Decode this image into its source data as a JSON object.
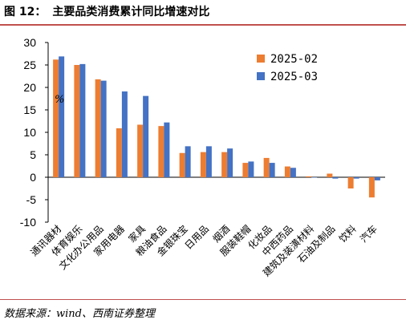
{
  "header": {
    "figure_label": "图 12：",
    "title": "主要品类消费累计同比增速对比"
  },
  "footer": {
    "source": "数据来源：wind、西南证券整理"
  },
  "chart_data": {
    "type": "bar",
    "unit_label": "%",
    "ylim": [
      -10,
      30
    ],
    "yticks": [
      -10,
      -5,
      0,
      5,
      10,
      15,
      20,
      25,
      30
    ],
    "grid": false,
    "legend_position": "top-right",
    "colors": {
      "2025-02": "#ed7d31",
      "2025-03": "#4472c4"
    },
    "categories": [
      "通讯器材",
      "体育娱乐",
      "文化办公用品",
      "家用电器",
      "家具",
      "粮油食品",
      "金银珠宝",
      "日用品",
      "烟酒",
      "服装鞋帽",
      "化妆品",
      "中西药品",
      "建筑及装潢材料",
      "石油及制品",
      "饮料",
      "汽车"
    ],
    "series": [
      {
        "name": "2025-02",
        "values": [
          26.2,
          25.0,
          21.8,
          10.9,
          11.7,
          11.4,
          5.4,
          5.6,
          5.6,
          3.2,
          4.3,
          2.4,
          0.2,
          0.8,
          -2.5,
          -4.5
        ]
      },
      {
        "name": "2025-03",
        "values": [
          26.9,
          25.2,
          21.5,
          19.1,
          18.1,
          12.2,
          6.9,
          6.9,
          6.4,
          3.5,
          3.2,
          2.1,
          0.0,
          -0.3,
          -0.3,
          -0.7
        ]
      }
    ]
  }
}
